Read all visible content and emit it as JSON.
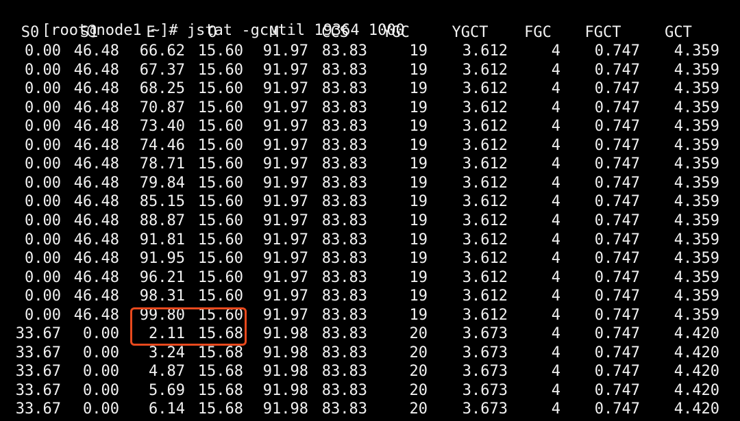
{
  "terminal": {
    "prompt": "[root@node1 ~]#",
    "command": "jstat -gcutil 19364 1000",
    "highlight_color": "#e8491d",
    "columns": [
      "S0",
      "S1",
      "E",
      "O",
      "M",
      "CCS",
      "YGC",
      "YGCT",
      "FGC",
      "FGCT",
      "GCT"
    ],
    "rows": [
      [
        "0.00",
        "46.48",
        "66.62",
        "15.60",
        "91.97",
        "83.83",
        "19",
        "3.612",
        "4",
        "0.747",
        "4.359"
      ],
      [
        "0.00",
        "46.48",
        "67.37",
        "15.60",
        "91.97",
        "83.83",
        "19",
        "3.612",
        "4",
        "0.747",
        "4.359"
      ],
      [
        "0.00",
        "46.48",
        "68.25",
        "15.60",
        "91.97",
        "83.83",
        "19",
        "3.612",
        "4",
        "0.747",
        "4.359"
      ],
      [
        "0.00",
        "46.48",
        "70.87",
        "15.60",
        "91.97",
        "83.83",
        "19",
        "3.612",
        "4",
        "0.747",
        "4.359"
      ],
      [
        "0.00",
        "46.48",
        "73.40",
        "15.60",
        "91.97",
        "83.83",
        "19",
        "3.612",
        "4",
        "0.747",
        "4.359"
      ],
      [
        "0.00",
        "46.48",
        "74.46",
        "15.60",
        "91.97",
        "83.83",
        "19",
        "3.612",
        "4",
        "0.747",
        "4.359"
      ],
      [
        "0.00",
        "46.48",
        "78.71",
        "15.60",
        "91.97",
        "83.83",
        "19",
        "3.612",
        "4",
        "0.747",
        "4.359"
      ],
      [
        "0.00",
        "46.48",
        "79.84",
        "15.60",
        "91.97",
        "83.83",
        "19",
        "3.612",
        "4",
        "0.747",
        "4.359"
      ],
      [
        "0.00",
        "46.48",
        "85.15",
        "15.60",
        "91.97",
        "83.83",
        "19",
        "3.612",
        "4",
        "0.747",
        "4.359"
      ],
      [
        "0.00",
        "46.48",
        "88.87",
        "15.60",
        "91.97",
        "83.83",
        "19",
        "3.612",
        "4",
        "0.747",
        "4.359"
      ],
      [
        "0.00",
        "46.48",
        "91.81",
        "15.60",
        "91.97",
        "83.83",
        "19",
        "3.612",
        "4",
        "0.747",
        "4.359"
      ],
      [
        "0.00",
        "46.48",
        "91.95",
        "15.60",
        "91.97",
        "83.83",
        "19",
        "3.612",
        "4",
        "0.747",
        "4.359"
      ],
      [
        "0.00",
        "46.48",
        "96.21",
        "15.60",
        "91.97",
        "83.83",
        "19",
        "3.612",
        "4",
        "0.747",
        "4.359"
      ],
      [
        "0.00",
        "46.48",
        "98.31",
        "15.60",
        "91.97",
        "83.83",
        "19",
        "3.612",
        "4",
        "0.747",
        "4.359"
      ],
      [
        "0.00",
        "46.48",
        "99.80",
        "15.60",
        "91.97",
        "83.83",
        "19",
        "3.612",
        "4",
        "0.747",
        "4.359"
      ],
      [
        "33.67",
        "0.00",
        "2.11",
        "15.68",
        "91.98",
        "83.83",
        "20",
        "3.673",
        "4",
        "0.747",
        "4.420"
      ],
      [
        "33.67",
        "0.00",
        "3.24",
        "15.68",
        "91.98",
        "83.83",
        "20",
        "3.673",
        "4",
        "0.747",
        "4.420"
      ],
      [
        "33.67",
        "0.00",
        "4.87",
        "15.68",
        "91.98",
        "83.83",
        "20",
        "3.673",
        "4",
        "0.747",
        "4.420"
      ],
      [
        "33.67",
        "0.00",
        "5.69",
        "15.68",
        "91.98",
        "83.83",
        "20",
        "3.673",
        "4",
        "0.747",
        "4.420"
      ],
      [
        "33.67",
        "0.00",
        "6.14",
        "15.68",
        "91.98",
        "83.83",
        "20",
        "3.673",
        "4",
        "0.747",
        "4.420"
      ]
    ]
  }
}
